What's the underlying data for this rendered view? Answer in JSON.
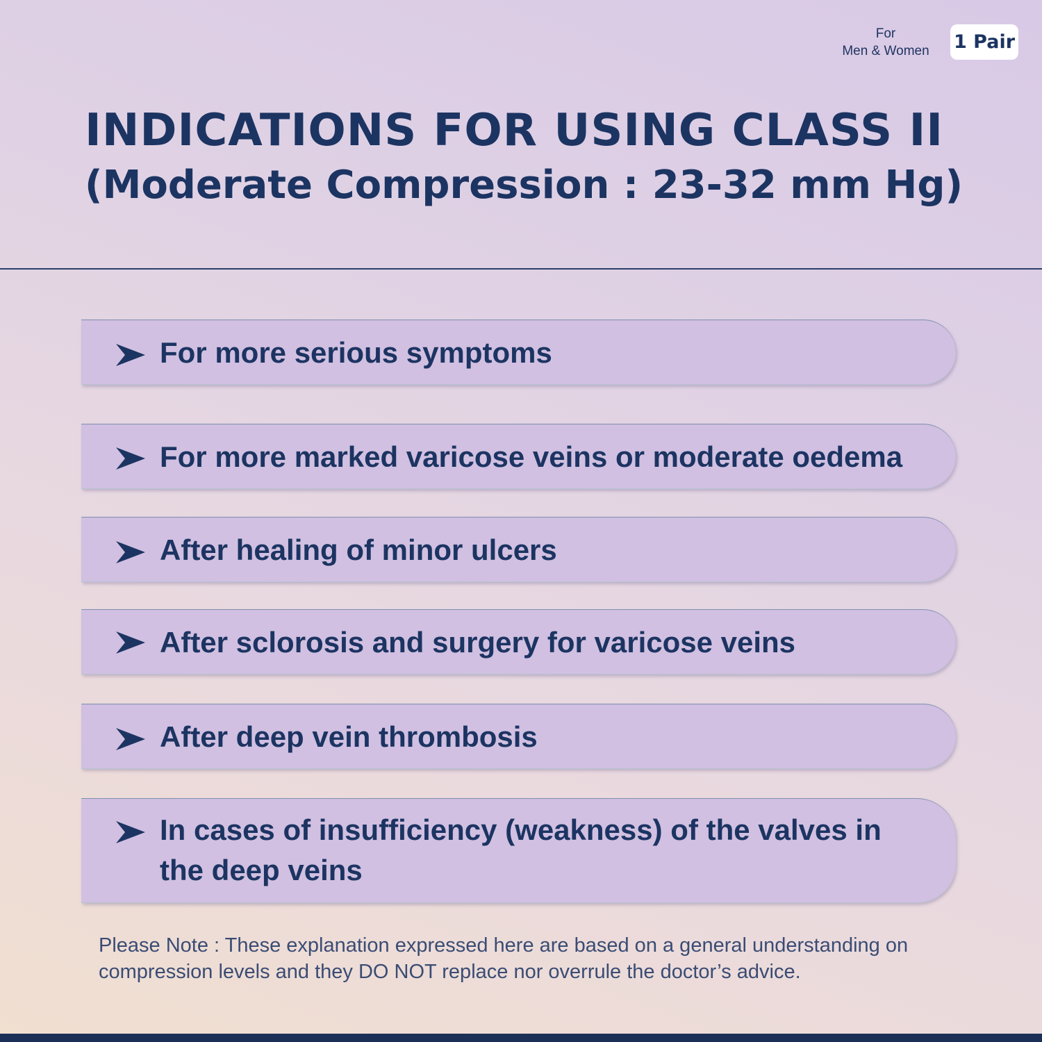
{
  "header": {
    "audience_line1": "For",
    "audience_line2": "Men & Women",
    "pair_badge": "1 Pair",
    "title": "INDICATIONS FOR USING CLASS II",
    "subtitle": "(Moderate Compression : 23-32 mm Hg)"
  },
  "indications": [
    {
      "text": "For more serious symptoms",
      "icon": "arrow-bullet-icon"
    },
    {
      "text": "For more marked varicose veins or moderate oedema",
      "icon": "arrow-bullet-icon"
    },
    {
      "text": "After healing of minor ulcers",
      "icon": "arrow-bullet-icon"
    },
    {
      "text": "After sclorosis and surgery for varicose veins",
      "icon": "arrow-bullet-icon"
    },
    {
      "text": "After deep vein thrombosis",
      "icon": "arrow-bullet-icon"
    },
    {
      "text": "In cases of insufficiency (weakness) of the valves in the deep veins",
      "icon": "arrow-bullet-icon"
    }
  ],
  "note": "Please Note : These explanation expressed here are based on a general understanding on compression levels and they DO NOT replace nor overrule the doctor’s advice.",
  "colors": {
    "navy": "#1c3462",
    "pill": "#d1c0e1",
    "footer": "#1c2f57"
  }
}
